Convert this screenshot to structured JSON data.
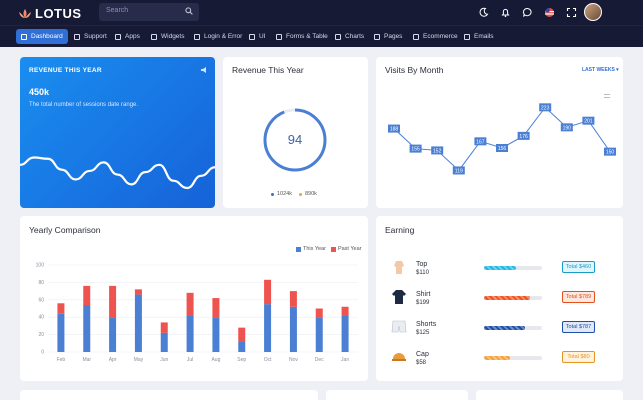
{
  "app": {
    "name": "LOTUS"
  },
  "search": {
    "placeholder": "Search"
  },
  "menu": [
    {
      "label": "Dashboard",
      "icon": "dashboard-icon"
    },
    {
      "label": "Support",
      "icon": "headset-icon"
    },
    {
      "label": "Apps",
      "icon": "apps-icon"
    },
    {
      "label": "Widgets",
      "icon": "widgets-icon"
    },
    {
      "label": "Login & Error",
      "icon": "lock-icon"
    },
    {
      "label": "UI",
      "icon": "ui-icon"
    },
    {
      "label": "Forms & Table",
      "icon": "table-icon"
    },
    {
      "label": "Charts",
      "icon": "chart-icon"
    },
    {
      "label": "Pages",
      "icon": "pages-icon"
    },
    {
      "label": "Ecommerce",
      "icon": "cart-icon"
    },
    {
      "label": "Emails",
      "icon": "mail-icon"
    }
  ],
  "revenue_card": {
    "title": "REVENUE THIS YEAR",
    "value": "450k",
    "subtitle": "The total number of sessions date range.",
    "wave_points": [
      0.62,
      0.5,
      0.52,
      0.7,
      0.86,
      0.72,
      0.58,
      0.78,
      0.94,
      0.74,
      0.62,
      0.88,
      1.0,
      0.8,
      0.66
    ]
  },
  "revenue_donut": {
    "title": "Revenue This Year",
    "center_value": "94",
    "percent": 94,
    "legend": [
      {
        "label": "1024k",
        "color": "#2f6fd6"
      },
      {
        "label": "890k",
        "color": "#f5a13a"
      }
    ]
  },
  "visits_card": {
    "title": "Visits By Month",
    "dropdown": "LAST WEEKS",
    "chart_data": {
      "type": "line",
      "values": [
        188,
        155,
        152,
        119,
        167,
        156,
        176,
        223,
        190,
        201,
        150
      ],
      "ylim": [
        100,
        240
      ],
      "color": "#4a7fd4"
    }
  },
  "yearly_card": {
    "title": "Yearly Comparison",
    "chart_data": {
      "type": "bar",
      "categories": [
        "Feb",
        "Mar",
        "Apr",
        "May",
        "Jun",
        "Jul",
        "Aug",
        "Sep",
        "Oct",
        "Nov",
        "Dec",
        "Jan"
      ],
      "series": [
        {
          "name": "This Year",
          "color": "#4a7fd4",
          "values": [
            44,
            54,
            40,
            66,
            22,
            42,
            40,
            12,
            55,
            52,
            40,
            42
          ]
        },
        {
          "name": "Past Year",
          "color": "#ef5350",
          "values": [
            12,
            22,
            36,
            6,
            12,
            26,
            22,
            16,
            28,
            18,
            10,
            10
          ]
        }
      ],
      "ylim": [
        0,
        100
      ],
      "ticks": [
        0,
        20,
        40,
        60,
        80,
        100
      ]
    }
  },
  "earning_card": {
    "title": "Earning",
    "items": [
      {
        "name": "Top",
        "price": "$110",
        "total": "Total $460",
        "fill": 0.55,
        "color": "#1fb8e6",
        "badge_bg": "#e0f6fc",
        "badge_fg": "#1a9cc8",
        "img": "top-icon"
      },
      {
        "name": "Shirt",
        "price": "$199",
        "total": "Total $789",
        "fill": 0.8,
        "color": "#f4511e",
        "badge_bg": "#fde7df",
        "badge_fg": "#e0511f",
        "img": "shirt-icon"
      },
      {
        "name": "Shorts",
        "price": "$125",
        "total": "Total $787",
        "fill": 0.7,
        "color": "#1e4fa8",
        "badge_bg": "#e1e9f8",
        "badge_fg": "#1e4fa8",
        "img": "shorts-icon"
      },
      {
        "name": "Cap",
        "price": "$58",
        "total": "Total $80",
        "fill": 0.45,
        "color": "#f5a13a",
        "badge_bg": "#fff3e0",
        "badge_fg": "#e69422",
        "img": "cap-icon"
      }
    ]
  }
}
